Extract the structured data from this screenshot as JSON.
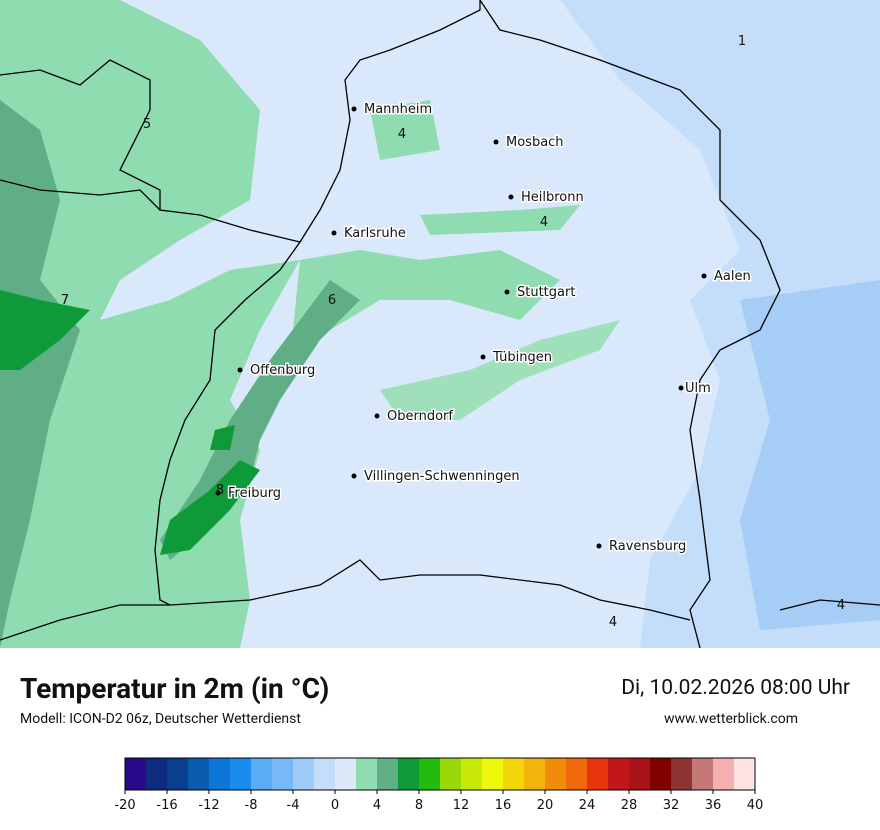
{
  "header": {
    "title": "Temperatur in 2m (in °C)",
    "subtitle": "Modell: ICON-D2 06z, Deutscher Wetterdienst",
    "date": "Di, 10.02.2026 08:00 Uhr",
    "website": "www.wetterblick.com"
  },
  "map": {
    "cities": [
      "Mannheim",
      "Mosbach",
      "Heilbronn",
      "Karlsruhe",
      "Aalen",
      "Stuttgart",
      "Tübingen",
      "Offenburg",
      "Ulm",
      "Oberndorf",
      "Villingen-Schwenningen",
      "Freiburg",
      "Ravensburg"
    ],
    "contour_labels": [
      1,
      5,
      4,
      4,
      7,
      6,
      8,
      4,
      4
    ]
  },
  "colorbar": {
    "ticks": [
      -20,
      -16,
      -12,
      -8,
      -4,
      0,
      4,
      8,
      12,
      16,
      20,
      24,
      28,
      32,
      36,
      40
    ],
    "colors": [
      "#2a0a8a",
      "#0d2c80",
      "#0a3f8f",
      "#0b5cb0",
      "#0c77d8",
      "#1a8cf0",
      "#5aacf5",
      "#78b8f7",
      "#9ecbf8",
      "#c3ddfa",
      "#dbe9fb",
      "#8fdcb0",
      "#5fae85",
      "#0f9a3a",
      "#22bb10",
      "#9ad80a",
      "#c8e806",
      "#eef80a",
      "#f2d60a",
      "#f0b40a",
      "#f08c0a",
      "#ee6a0c",
      "#e8340c",
      "#c01818",
      "#a8141a",
      "#800000",
      "#8e3232",
      "#c47878",
      "#f5b0b0",
      "#fde4e4"
    ]
  }
}
